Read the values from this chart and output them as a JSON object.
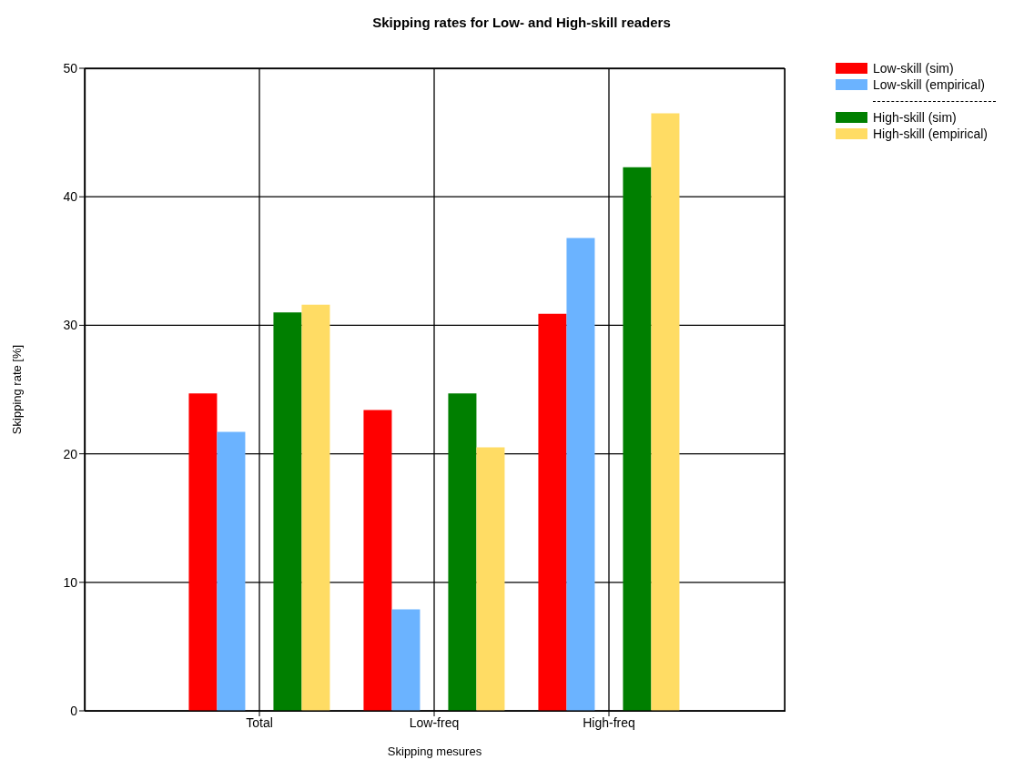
{
  "chart_data": {
    "type": "bar",
    "title": "Skipping rates for Low- and High-skill readers",
    "xlabel": "Skipping mesures",
    "ylabel": "Skipping rate [%]",
    "categories": [
      "Total",
      "Low-freq",
      "High-freq"
    ],
    "series": [
      {
        "name": "Low-skill (sim)",
        "color": "#ff0000",
        "values": [
          24.7,
          23.4,
          30.9
        ]
      },
      {
        "name": "Low-skill (empirical)",
        "color": "#6bb3ff",
        "values": [
          21.7,
          7.9,
          36.8
        ]
      },
      {
        "name": null,
        "color": "#ffffff",
        "values": [
          null,
          null,
          null
        ]
      },
      {
        "name": "High-skill (sim)",
        "color": "#007f00",
        "values": [
          31.0,
          24.7,
          42.3
        ]
      },
      {
        "name": "High-skill (empirical)",
        "color": "#ffdc64",
        "values": [
          31.6,
          20.5,
          46.5
        ]
      }
    ],
    "ylim": [
      0,
      50
    ],
    "yticks": [
      0,
      10,
      20,
      30,
      40,
      50
    ],
    "grid": true,
    "legend": "top right"
  }
}
